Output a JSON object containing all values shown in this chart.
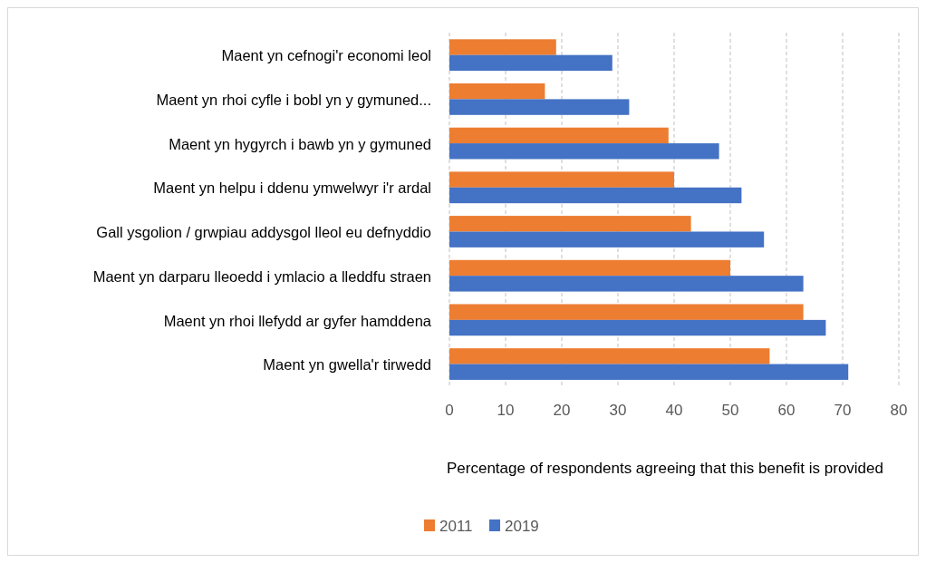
{
  "chart_data": {
    "type": "bar",
    "orientation": "horizontal",
    "xlabel": "Percentage of respondents agreeing that this benefit is provided",
    "categories": [
      "Maent yn cefnogi'r economi leol",
      "Maent yn rhoi cyfle i bobl yn y gymuned...",
      "Maent yn hygyrch i bawb yn y gymuned",
      "Maent yn helpu i ddenu ymwelwyr i'r ardal",
      "Gall ysgolion / grwpiau addysgol lleol eu defnyddio",
      "Maent yn darparu lleoedd i ymlacio a lleddfu straen",
      "Maent yn rhoi llefydd ar gyfer hamddena",
      "Maent yn gwella'r tirwedd"
    ],
    "series": [
      {
        "name": "2011",
        "color": "#ed7d31",
        "values": [
          19,
          17,
          39,
          40,
          43,
          50,
          63,
          57
        ]
      },
      {
        "name": "2019",
        "color": "#4472c4",
        "values": [
          29,
          32,
          48,
          52,
          56,
          63,
          67,
          71
        ]
      }
    ],
    "xlim": [
      0,
      80
    ],
    "xticks": [
      0,
      10,
      20,
      30,
      40,
      50,
      60,
      70,
      80
    ],
    "grid": "x",
    "legend": "bottom"
  }
}
